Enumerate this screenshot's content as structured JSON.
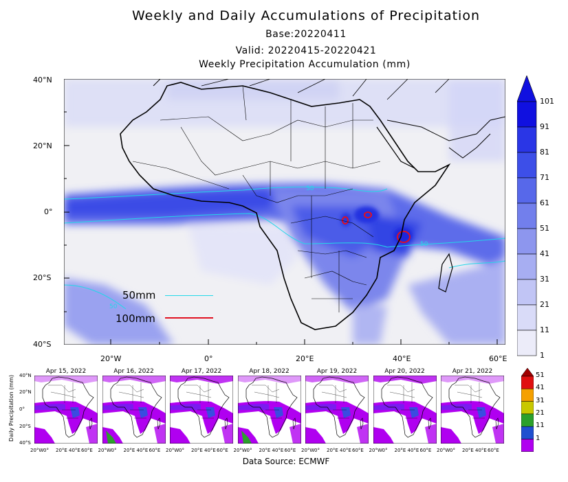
{
  "header": {
    "title": "Weekly and Daily Accumulations of Precipitation",
    "base": "Base:20220411",
    "valid": "Valid: 20220415-20220421",
    "map_title": "Weekly Precipitation Accumulation (mm)"
  },
  "main_map": {
    "lat_labels": [
      "40°N",
      "20°N",
      "0°",
      "20°S",
      "40°S"
    ],
    "lon_labels": [
      "20°W",
      "0°",
      "20°E",
      "40°E",
      "60°E"
    ],
    "contour_labels": [
      "50",
      "50",
      "50"
    ],
    "legend_50": "50mm",
    "legend_100": "100mm",
    "line_50_color": "#22d8e8",
    "line_100_color": "#e01020"
  },
  "colorbar": {
    "labels": [
      "101",
      "91",
      "81",
      "71",
      "61",
      "51",
      "41",
      "31",
      "21",
      "11",
      "1"
    ],
    "colors": [
      "#1010e0",
      "#2a36e6",
      "#3d4fe8",
      "#5768ea",
      "#727fec",
      "#8d96ee",
      "#a7aef2",
      "#c1c5f5",
      "#d9dbf8",
      "#ececf9"
    ]
  },
  "daily": {
    "ylabel": "Daily Precipitation (mm)",
    "panels": [
      "Apr 15, 2022",
      "Apr 16, 2022",
      "Apr 17, 2022",
      "Apr 18, 2022",
      "Apr 19, 2022",
      "Apr 20, 2022",
      "Apr 21, 2022"
    ],
    "lat_labels": [
      "40°N",
      "20°N",
      "0°",
      "20°S",
      "40°S"
    ],
    "lon_labels": [
      "20°W",
      "0°",
      "20°E",
      "40°E",
      "60°E"
    ],
    "colorbar_labels": [
      "51",
      "41",
      "31",
      "21",
      "11",
      "1"
    ],
    "colorbar_colors": [
      "#e01010",
      "#f5a000",
      "#c8c800",
      "#2ca02c",
      "#2050d0",
      "#b000f0"
    ]
  },
  "footer": {
    "source": "Data Source: ECMWF"
  }
}
